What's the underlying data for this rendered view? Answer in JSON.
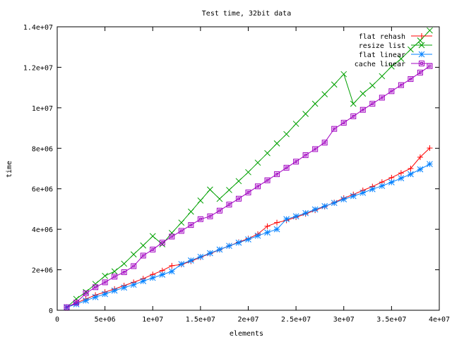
{
  "chart_data": {
    "type": "line",
    "title": "Test time, 32bit data",
    "xlabel": "elements",
    "ylabel": "time",
    "xlim": [
      0,
      40000000
    ],
    "ylim": [
      0,
      14000000
    ],
    "x_ticks": [
      0,
      5000000,
      10000000,
      15000000,
      20000000,
      25000000,
      30000000,
      35000000,
      40000000
    ],
    "x_tick_labels": [
      "0",
      "5e+06",
      "1e+07",
      "1.5e+07",
      "2e+07",
      "2.5e+07",
      "3e+07",
      "3.5e+07",
      "4e+07"
    ],
    "y_ticks": [
      0,
      2000000,
      4000000,
      6000000,
      8000000,
      10000000,
      12000000,
      14000000
    ],
    "y_tick_labels": [
      "0",
      "2e+06",
      "4e+06",
      "6e+06",
      "8e+06",
      "1e+07",
      "1.2e+07",
      "1.4e+07"
    ],
    "grid": false,
    "legend_position": "top-right",
    "x": [
      1000000,
      2000000,
      3000000,
      4000000,
      5000000,
      6000000,
      7000000,
      8000000,
      9000000,
      10000000,
      11000000,
      12000000,
      13000000,
      14000000,
      15000000,
      16000000,
      17000000,
      18000000,
      19000000,
      20000000,
      21000000,
      22000000,
      23000000,
      24000000,
      25000000,
      26000000,
      27000000,
      28000000,
      29000000,
      30000000,
      31000000,
      32000000,
      33000000,
      34000000,
      35000000,
      36000000,
      37000000,
      38000000,
      39000000
    ],
    "series": [
      {
        "name": "flat rehash",
        "color": "#ff0000",
        "marker": "plus",
        "values": [
          150000,
          360000,
          560000,
          750000,
          900000,
          1050000,
          1220000,
          1380000,
          1560000,
          1770000,
          1960000,
          2200000,
          2260000,
          2420000,
          2620000,
          2800000,
          2990000,
          3180000,
          3360000,
          3540000,
          3760000,
          4150000,
          4330000,
          4440000,
          4600000,
          4760000,
          4940000,
          5120000,
          5320000,
          5540000,
          5720000,
          5920000,
          6110000,
          6330000,
          6550000,
          6780000,
          7000000,
          7560000,
          8010000
        ]
      },
      {
        "name": "resize list",
        "color": "#00a000",
        "marker": "cross",
        "values": [
          150000,
          560000,
          900000,
          1300000,
          1700000,
          1920000,
          2300000,
          2760000,
          3200000,
          3660000,
          3260000,
          3820000,
          4330000,
          4870000,
          5420000,
          5960000,
          5500000,
          5940000,
          6380000,
          6820000,
          7290000,
          7760000,
          8240000,
          8700000,
          9210000,
          9700000,
          10200000,
          10670000,
          11150000,
          11660000,
          10200000,
          10700000,
          11100000,
          11560000,
          12040000,
          12420000,
          12880000,
          13320000,
          13820000
        ]
      },
      {
        "name": "flat linear",
        "color": "#0080ff",
        "marker": "star",
        "values": [
          150000,
          300000,
          480000,
          650000,
          800000,
          970000,
          1120000,
          1260000,
          1440000,
          1600000,
          1760000,
          1920000,
          2280000,
          2460000,
          2640000,
          2820000,
          3000000,
          3180000,
          3340000,
          3500000,
          3680000,
          3840000,
          4000000,
          4500000,
          4640000,
          4800000,
          4980000,
          5140000,
          5300000,
          5480000,
          5640000,
          5800000,
          5980000,
          6140000,
          6320000,
          6520000,
          6720000,
          6960000,
          7220000
        ]
      },
      {
        "name": "cache linear",
        "color": "#a000c0",
        "marker": "square",
        "values": [
          150000,
          380000,
          840000,
          1140000,
          1380000,
          1660000,
          1880000,
          2180000,
          2700000,
          3000000,
          3340000,
          3640000,
          3920000,
          4210000,
          4500000,
          4640000,
          4920000,
          5220000,
          5510000,
          5820000,
          6120000,
          6420000,
          6720000,
          7040000,
          7340000,
          7660000,
          7960000,
          8280000,
          8960000,
          9260000,
          9580000,
          9900000,
          10200000,
          10500000,
          10820000,
          11120000,
          11420000,
          11740000,
          12060000
        ]
      }
    ]
  }
}
